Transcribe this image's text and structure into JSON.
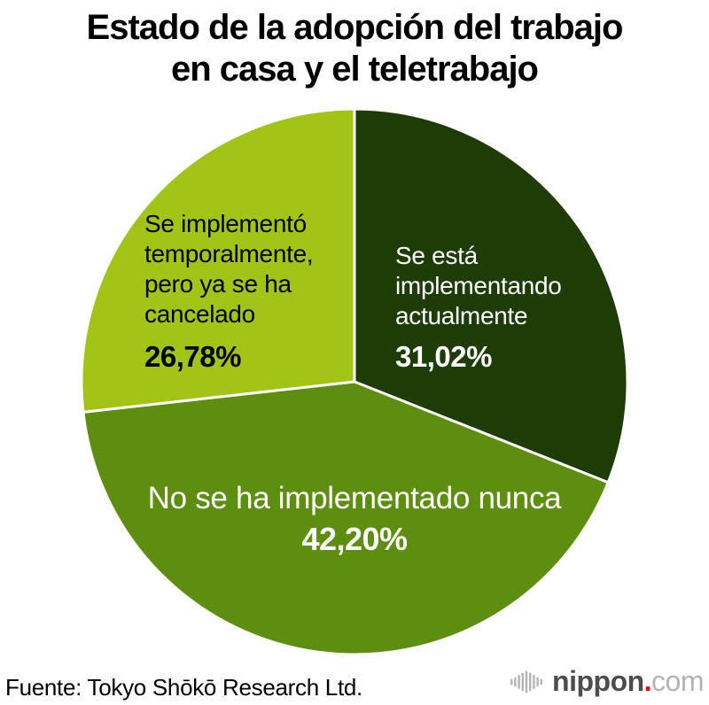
{
  "title": "Estado de la adopción del trabajo\nen casa y el teletrabajo",
  "source": "Fuente: Tokyo Shōkō Research Ltd.",
  "logo": {
    "icon": "soundwave-bars-icon",
    "name": "nippon",
    "dot": ".",
    "tld": "com",
    "name_color": "#4d4d4d",
    "dot_color": "#e60012",
    "tld_color": "#b3b3b3"
  },
  "chart_data": {
    "type": "pie",
    "title": "Estado de la adopción del trabajo en casa y el teletrabajo",
    "start_angle_deg": 0,
    "direction": "clockwise",
    "separator_color": "#ffffff",
    "total": 100,
    "slices": [
      {
        "label": "Se está implementando actualmente",
        "label_display": "Se está\nimplementando\nactualmente",
        "value": 31.02,
        "value_display": "31,02%",
        "color": "#1e3c06",
        "text_color": "#ffffff"
      },
      {
        "label": "No se ha implementado nunca",
        "label_display": "No se ha implementado nunca",
        "value": 42.2,
        "value_display": "42,20%",
        "color": "#5e8e10",
        "text_color": "#ffffff"
      },
      {
        "label": "Se implementó temporalmente, pero ya se ha cancelado",
        "label_display": "Se implementó\ntemporalmente,\npero ya se ha\ncancelado",
        "value": 26.78,
        "value_display": "26,78%",
        "color": "#a1c417",
        "text_color": "#000000"
      }
    ]
  }
}
